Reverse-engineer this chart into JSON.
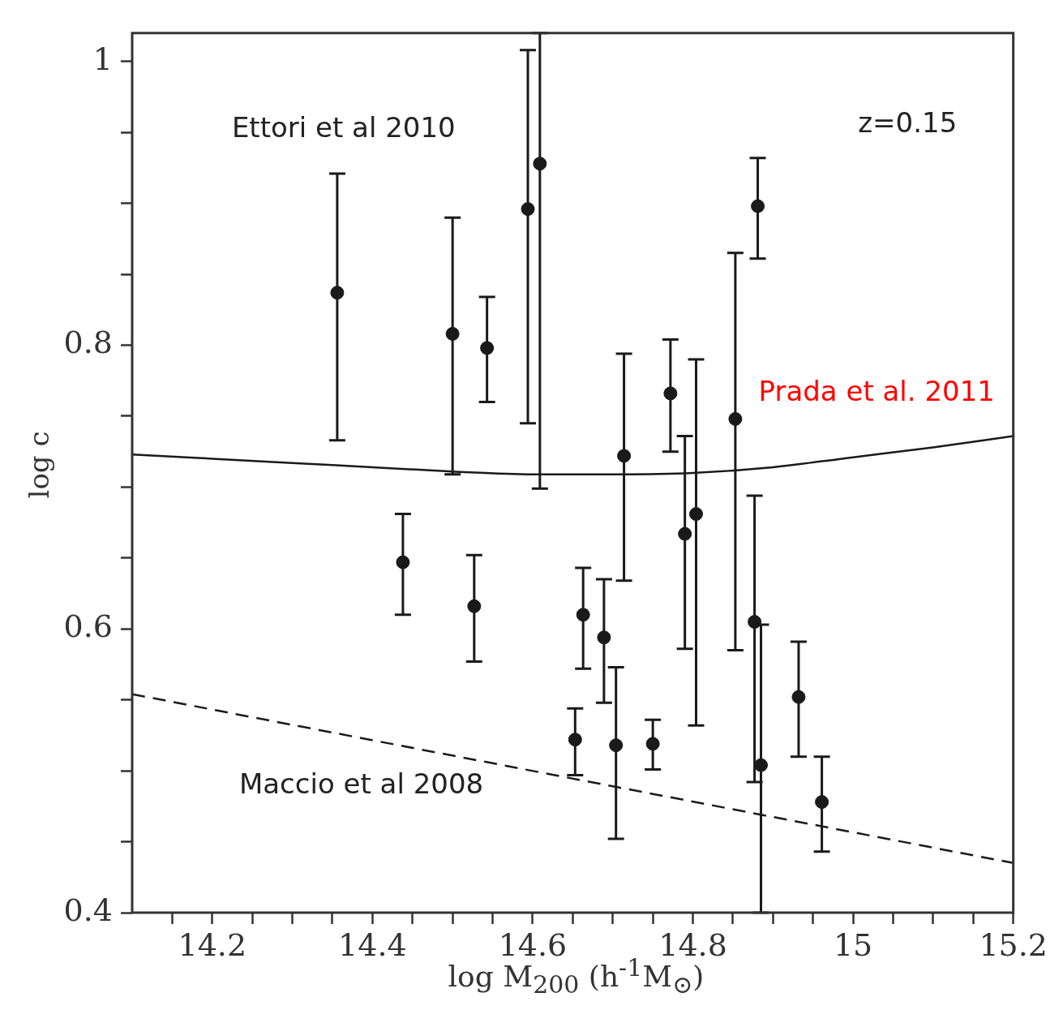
{
  "chart_data": {
    "type": "scatter",
    "xlabel": "log M$_{200}$ (h$^{-1}$M$_{⊙}$)",
    "ylabel": "log c",
    "xlim": [
      14.1,
      15.2
    ],
    "ylim": [
      0.4,
      1.02
    ],
    "xticks": [
      {
        "value": 14.15,
        "label": null
      },
      14.2,
      {
        "value": 14.25,
        "label": null
      },
      {
        "value": 14.3,
        "label": null
      },
      {
        "value": 14.35,
        "label": null
      },
      14.4,
      {
        "value": 14.45,
        "label": null
      },
      {
        "value": 14.5,
        "label": null
      },
      {
        "value": 14.55,
        "label": null
      },
      14.6,
      {
        "value": 14.65,
        "label": null
      },
      {
        "value": 14.7,
        "label": null
      },
      {
        "value": 14.75,
        "label": null
      },
      14.8,
      {
        "value": 14.85,
        "label": null
      },
      {
        "value": 14.9,
        "label": null
      },
      {
        "value": 14.95,
        "label": null
      },
      15,
      {
        "value": 15.05,
        "label": null
      },
      {
        "value": 15.1,
        "label": null
      },
      {
        "value": 15.15,
        "label": null
      },
      15.2
    ],
    "yticks": [
      0.4,
      {
        "value": 0.45,
        "label": null
      },
      {
        "value": 0.5,
        "label": null
      },
      {
        "value": 0.55,
        "label": null
      },
      0.6,
      {
        "value": 0.65,
        "label": null
      },
      {
        "value": 0.7,
        "label": null
      },
      {
        "value": 0.75,
        "label": null
      },
      0.8,
      {
        "value": 0.85,
        "label": null
      },
      {
        "value": 0.9,
        "label": null
      },
      {
        "value": 0.95,
        "label": null
      },
      1
    ],
    "grid": false,
    "legend": false,
    "series": [
      {
        "type": "scatter",
        "color": "#1a1a1a",
        "marker": "circle",
        "x": [
          14.356,
          14.438,
          14.5,
          14.527,
          14.543,
          14.594,
          14.609,
          14.653,
          14.663,
          14.689,
          14.704,
          14.714,
          14.75,
          14.772,
          14.79,
          14.804,
          14.853,
          14.877,
          14.881,
          14.885,
          14.932,
          14.961
        ],
        "values": [
          0.837,
          0.647,
          0.808,
          0.616,
          0.798,
          0.896,
          0.928,
          0.522,
          0.61,
          0.594,
          0.518,
          0.722,
          0.519,
          0.766,
          0.667,
          0.681,
          0.748,
          0.605,
          0.898,
          0.504,
          0.552,
          0.478
        ],
        "errors": [
          [
            0.733,
            0.921
          ],
          [
            0.61,
            0.681
          ],
          [
            0.709,
            0.89
          ],
          [
            0.577,
            0.652
          ],
          [
            0.76,
            0.834
          ],
          [
            0.745,
            1.008
          ],
          [
            0.699,
            1.02
          ],
          [
            0.497,
            0.544
          ],
          [
            0.572,
            0.643
          ],
          [
            0.548,
            0.635
          ],
          [
            0.452,
            0.573
          ],
          [
            0.634,
            0.794
          ],
          [
            0.501,
            0.536
          ],
          [
            0.725,
            0.804
          ],
          [
            0.586,
            0.736
          ],
          [
            0.532,
            0.79
          ],
          [
            0.585,
            0.865
          ],
          [
            0.492,
            0.694
          ],
          [
            0.861,
            0.932
          ],
          [
            0.4,
            0.603
          ],
          [
            0.51,
            0.591
          ],
          [
            0.443,
            0.51
          ]
        ]
      },
      {
        "type": "line",
        "color": "#1a1a1a",
        "line_style": "solid",
        "marker": "none",
        "x": [
          14.1,
          14.2,
          14.3,
          14.4,
          14.5,
          14.6,
          14.7,
          14.8,
          14.9,
          15.0,
          15.1,
          15.2
        ],
        "values": [
          0.723,
          0.72,
          0.717,
          0.714,
          0.711,
          0.709,
          0.709,
          0.71,
          0.714,
          0.721,
          0.728,
          0.736
        ]
      },
      {
        "type": "line",
        "color": "#1a1a1a",
        "line_style": "dashed",
        "marker": "none",
        "x": [
          14.1,
          15.2
        ],
        "values": [
          0.554,
          0.435
        ]
      }
    ],
    "annotations": [
      "Ettori et al 2010",
      "z=0.15",
      "Prada et al. 2011",
      "Maccio et al 2008"
    ]
  }
}
